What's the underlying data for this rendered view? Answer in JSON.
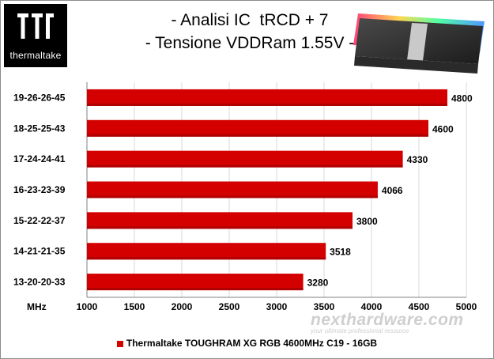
{
  "brand": {
    "name": "thermaltake"
  },
  "title_line_1": "- Analisi IC  tRCD + 7",
  "title_line_2": "- Tensione VDDRam 1.55V -",
  "watermark": {
    "main": "nexthardware.com",
    "tagline": "your ultimate professional resource"
  },
  "colors": {
    "bar": "#d40000",
    "bar_dark": "#b00000",
    "grid": "#d9d9d9",
    "logo_bg": "#000000"
  },
  "chart_data": {
    "type": "bar",
    "orientation": "horizontal",
    "categories": [
      "19-26-26-45",
      "18-25-25-43",
      "17-24-24-41",
      "16-23-23-39",
      "15-22-22-37",
      "14-21-21-35",
      "13-20-20-33"
    ],
    "series": [
      {
        "name": "Thermaltake TOUGHRAM XG RGB 4600MHz C19 - 16GB",
        "values": [
          4800,
          4600,
          4330,
          4066,
          3800,
          3518,
          3280
        ]
      }
    ],
    "xlabel": "MHz",
    "xlim": [
      1000,
      5000
    ],
    "xticks": [
      1000,
      1500,
      2000,
      2500,
      3000,
      3500,
      4000,
      4500,
      5000
    ],
    "grid": true,
    "legend": "bottom"
  }
}
